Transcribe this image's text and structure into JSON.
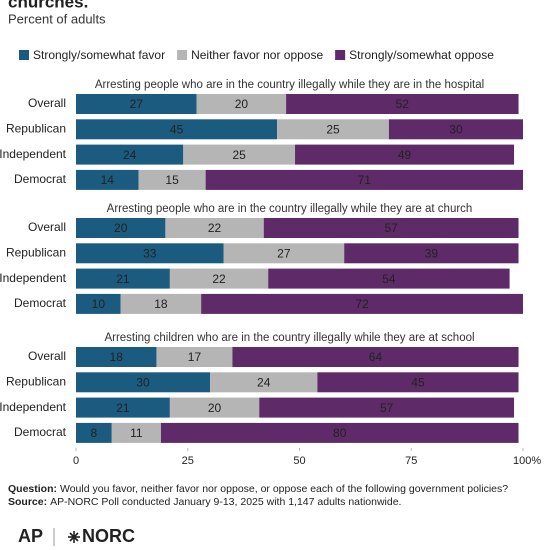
{
  "header": {
    "title": "churches.",
    "subtitle": "Percent of adults"
  },
  "chart_data": [
    {
      "type": "stacked_bar",
      "title": "Arresting people who are in the country illegally while they are in the hospital",
      "categories": [
        "Overall",
        "Republican",
        "Independent",
        "Democrat"
      ],
      "xlim": [
        0,
        100
      ],
      "series": [
        {
          "name": "Strongly/somewhat favor",
          "color": "#1b5b7f",
          "values": [
            27,
            45,
            24,
            14
          ]
        },
        {
          "name": "Neither favor nor oppose",
          "color": "#b5b5b5",
          "values": [
            20,
            25,
            25,
            15
          ]
        },
        {
          "name": "Strongly/somewhat oppose",
          "color": "#5e2a67",
          "values": [
            52,
            30,
            49,
            71
          ]
        }
      ]
    },
    {
      "type": "stacked_bar",
      "title": "Arresting people who are in the country illegally while they are at church",
      "categories": [
        "Overall",
        "Republican",
        "Independent",
        "Democrat"
      ],
      "xlim": [
        0,
        100
      ],
      "series": [
        {
          "color": "#1b5b7f",
          "values": [
            20,
            33,
            21,
            10
          ]
        },
        {
          "color": "#b5b5b5",
          "values": [
            22,
            27,
            22,
            18
          ]
        },
        {
          "color": "#5e2a67",
          "values": [
            57,
            39,
            54,
            72
          ]
        }
      ]
    },
    {
      "type": "stacked_bar",
      "title": "Arresting children who are in the country illegally while they are at school",
      "categories": [
        "Overall",
        "Republican",
        "Independent",
        "Democrat"
      ],
      "xlim": [
        0,
        100
      ],
      "xticks": [
        0,
        25,
        50,
        75,
        {
          "value": 100,
          "label": "100%"
        }
      ],
      "series": [
        {
          "color": "#1b5b7f",
          "values": [
            18,
            30,
            21,
            8
          ]
        },
        {
          "color": "#b5b5b5",
          "values": [
            17,
            24,
            20,
            11
          ]
        },
        {
          "color": "#5e2a67",
          "values": [
            64,
            45,
            57,
            80
          ]
        }
      ]
    }
  ],
  "footer": {
    "question": {
      "label": "Question:",
      "text": "Would you favor, neither favor nor oppose, or oppose each of the following government policies?"
    },
    "source": {
      "label": "Source:",
      "text": "AP-NORC Poll conducted January 9-13, 2025 with 1,147 adults nationwide."
    },
    "logos": [
      "AP",
      "NORC"
    ]
  }
}
